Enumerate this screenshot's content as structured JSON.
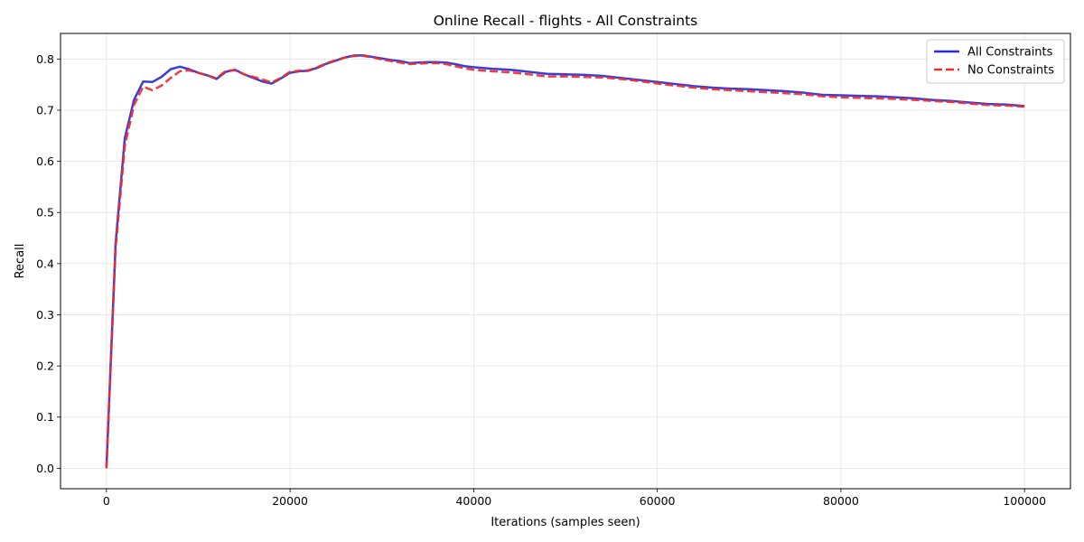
{
  "chart_data": {
    "type": "line",
    "title": "Online Recall - flights - All Constraints",
    "xlabel": "Iterations (samples seen)",
    "ylabel": "Recall",
    "xlim": [
      -5000,
      105000
    ],
    "ylim": [
      -0.04,
      0.85
    ],
    "x_ticks": [
      0,
      20000,
      40000,
      60000,
      80000,
      100000
    ],
    "x_tick_labels": [
      "0",
      "20000",
      "40000",
      "60000",
      "80000",
      "100000"
    ],
    "y_ticks": [
      0.0,
      0.1,
      0.2,
      0.3,
      0.4,
      0.5,
      0.6,
      0.7,
      0.8
    ],
    "y_tick_labels": [
      "0.0",
      "0.1",
      "0.2",
      "0.3",
      "0.4",
      "0.5",
      "0.6",
      "0.7",
      "0.8"
    ],
    "grid": true,
    "legend_position": "top-right",
    "series": [
      {
        "name": "All Constraints",
        "color": "#2b2bd9",
        "style": "solid",
        "x": [
          0,
          1000,
          2000,
          3000,
          4000,
          5000,
          6000,
          7000,
          8000,
          9000,
          10000,
          11000,
          12000,
          13000,
          14000,
          15000,
          16000,
          17000,
          18000,
          19000,
          20000,
          21000,
          22000,
          23000,
          24000,
          25000,
          26000,
          27000,
          28000,
          29000,
          30000,
          31000,
          32000,
          33000,
          34000,
          35000,
          36000,
          37000,
          38000,
          39000,
          40000,
          42000,
          44000,
          46000,
          48000,
          50000,
          52000,
          54000,
          56000,
          58000,
          60000,
          62000,
          64000,
          66000,
          68000,
          70000,
          72000,
          74000,
          76000,
          78000,
          80000,
          82000,
          84000,
          86000,
          88000,
          90000,
          92000,
          94000,
          96000,
          98000,
          100000
        ],
        "y": [
          0.0,
          0.44,
          0.645,
          0.72,
          0.756,
          0.755,
          0.765,
          0.78,
          0.785,
          0.78,
          0.773,
          0.768,
          0.761,
          0.775,
          0.779,
          0.77,
          0.763,
          0.756,
          0.752,
          0.762,
          0.773,
          0.776,
          0.777,
          0.783,
          0.791,
          0.797,
          0.803,
          0.807,
          0.807,
          0.804,
          0.801,
          0.798,
          0.796,
          0.792,
          0.793,
          0.794,
          0.794,
          0.793,
          0.79,
          0.786,
          0.784,
          0.781,
          0.779,
          0.775,
          0.771,
          0.77,
          0.769,
          0.767,
          0.763,
          0.759,
          0.755,
          0.751,
          0.747,
          0.744,
          0.742,
          0.741,
          0.739,
          0.737,
          0.734,
          0.73,
          0.729,
          0.728,
          0.727,
          0.725,
          0.723,
          0.72,
          0.718,
          0.715,
          0.712,
          0.711,
          0.708
        ]
      },
      {
        "name": "No Constraints",
        "color": "#ee2c2c",
        "style": "dashed",
        "x": [
          0,
          1000,
          2000,
          3000,
          4000,
          5000,
          6000,
          7000,
          8000,
          9000,
          10000,
          11000,
          12000,
          13000,
          14000,
          15000,
          16000,
          17000,
          18000,
          19000,
          20000,
          21000,
          22000,
          23000,
          24000,
          25000,
          26000,
          27000,
          28000,
          29000,
          30000,
          31000,
          32000,
          33000,
          34000,
          35000,
          36000,
          37000,
          38000,
          39000,
          40000,
          42000,
          44000,
          46000,
          48000,
          50000,
          52000,
          54000,
          56000,
          58000,
          60000,
          62000,
          64000,
          66000,
          68000,
          70000,
          72000,
          74000,
          76000,
          78000,
          80000,
          82000,
          84000,
          86000,
          88000,
          90000,
          92000,
          94000,
          96000,
          98000,
          100000
        ],
        "y": [
          0.0,
          0.43,
          0.63,
          0.71,
          0.746,
          0.739,
          0.748,
          0.763,
          0.776,
          0.778,
          0.773,
          0.768,
          0.762,
          0.777,
          0.778,
          0.77,
          0.765,
          0.76,
          0.754,
          0.763,
          0.775,
          0.777,
          0.778,
          0.784,
          0.792,
          0.798,
          0.803,
          0.806,
          0.806,
          0.803,
          0.799,
          0.796,
          0.793,
          0.79,
          0.791,
          0.792,
          0.792,
          0.79,
          0.786,
          0.782,
          0.779,
          0.776,
          0.774,
          0.77,
          0.766,
          0.766,
          0.765,
          0.764,
          0.761,
          0.757,
          0.752,
          0.748,
          0.744,
          0.741,
          0.739,
          0.737,
          0.735,
          0.733,
          0.731,
          0.727,
          0.725,
          0.724,
          0.723,
          0.722,
          0.72,
          0.718,
          0.716,
          0.713,
          0.71,
          0.709,
          0.707
        ]
      }
    ]
  }
}
